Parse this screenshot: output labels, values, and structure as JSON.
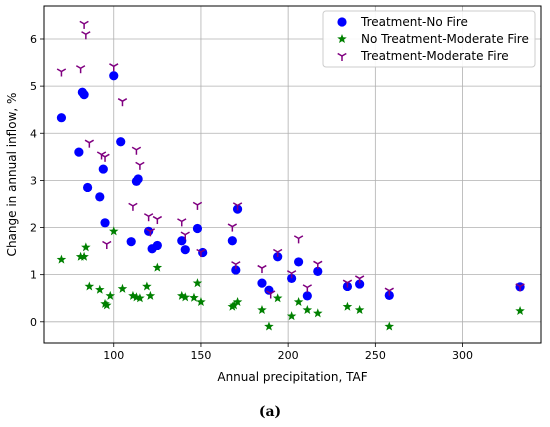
{
  "chart_data": {
    "type": "scatter",
    "xlabel": "Annual precipitation, TAF",
    "ylabel": "Change in annual inflow, %",
    "xlim": [
      60,
      345
    ],
    "ylim": [
      -0.45,
      6.7
    ],
    "xticks": [
      "100",
      "150",
      "200",
      "250",
      "300"
    ],
    "xtick_values": [
      100,
      150,
      200,
      250,
      300
    ],
    "yticks": [
      "0",
      "1",
      "2",
      "3",
      "4",
      "5",
      "6"
    ],
    "ytick_values": [
      0,
      1,
      2,
      3,
      4,
      5,
      6
    ],
    "grid": true,
    "legend_position": "top-right",
    "caption": "(a)",
    "series": [
      {
        "name": "Treatment-No Fire",
        "marker": "circle",
        "color": "#0000ff",
        "points": [
          [
            70,
            4.33
          ],
          [
            80,
            3.6
          ],
          [
            82,
            4.87
          ],
          [
            83,
            4.82
          ],
          [
            85,
            2.85
          ],
          [
            92,
            2.65
          ],
          [
            94,
            3.24
          ],
          [
            95,
            2.1
          ],
          [
            100,
            5.22
          ],
          [
            104,
            3.82
          ],
          [
            110,
            1.7
          ],
          [
            113,
            2.98
          ],
          [
            114,
            3.03
          ],
          [
            120,
            1.92
          ],
          [
            122,
            1.55
          ],
          [
            125,
            1.62
          ],
          [
            139,
            1.72
          ],
          [
            141,
            1.53
          ],
          [
            148,
            1.98
          ],
          [
            151,
            1.47
          ],
          [
            168,
            1.72
          ],
          [
            170,
            1.1
          ],
          [
            171,
            2.39
          ],
          [
            185,
            0.82
          ],
          [
            189,
            0.67
          ],
          [
            194,
            1.38
          ],
          [
            202,
            0.92
          ],
          [
            206,
            1.27
          ],
          [
            211,
            0.55
          ],
          [
            217,
            1.07
          ],
          [
            234,
            0.75
          ],
          [
            241,
            0.8
          ],
          [
            258,
            0.56
          ],
          [
            333,
            0.74
          ]
        ]
      },
      {
        "name": "No Treatment-Moderate Fire",
        "marker": "star",
        "color": "#008000",
        "points": [
          [
            70,
            1.32
          ],
          [
            81,
            1.38
          ],
          [
            83,
            1.38
          ],
          [
            84,
            1.58
          ],
          [
            86,
            0.75
          ],
          [
            92,
            0.68
          ],
          [
            95,
            0.38
          ],
          [
            96,
            0.35
          ],
          [
            98,
            0.55
          ],
          [
            100,
            1.92
          ],
          [
            105,
            0.7
          ],
          [
            111,
            0.55
          ],
          [
            113,
            0.52
          ],
          [
            115,
            0.5
          ],
          [
            119,
            0.75
          ],
          [
            121,
            0.55
          ],
          [
            125,
            1.15
          ],
          [
            139,
            0.55
          ],
          [
            141,
            0.52
          ],
          [
            146,
            0.51
          ],
          [
            148,
            0.82
          ],
          [
            150,
            0.42
          ],
          [
            168,
            0.32
          ],
          [
            169,
            0.35
          ],
          [
            171,
            0.42
          ],
          [
            185,
            0.25
          ],
          [
            189,
            -0.1
          ],
          [
            194,
            0.5
          ],
          [
            202,
            0.12
          ],
          [
            206,
            0.42
          ],
          [
            211,
            0.25
          ],
          [
            217,
            0.18
          ],
          [
            234,
            0.32
          ],
          [
            241,
            0.25
          ],
          [
            258,
            -0.1
          ],
          [
            333,
            0.23
          ]
        ]
      },
      {
        "name": "Treatment-Moderate Fire",
        "marker": "tri_down",
        "color": "#800080",
        "points": [
          [
            70,
            5.31
          ],
          [
            81,
            5.38
          ],
          [
            83,
            6.32
          ],
          [
            84,
            6.1
          ],
          [
            86,
            3.8
          ],
          [
            93,
            3.55
          ],
          [
            95,
            3.5
          ],
          [
            96,
            1.65
          ],
          [
            100,
            5.42
          ],
          [
            105,
            4.68
          ],
          [
            111,
            2.46
          ],
          [
            113,
            3.65
          ],
          [
            115,
            3.33
          ],
          [
            120,
            2.24
          ],
          [
            121,
            1.92
          ],
          [
            125,
            2.18
          ],
          [
            139,
            2.13
          ],
          [
            141,
            1.85
          ],
          [
            148,
            2.48
          ],
          [
            150,
            1.48
          ],
          [
            168,
            2.02
          ],
          [
            170,
            1.22
          ],
          [
            171,
            2.47
          ],
          [
            185,
            1.14
          ],
          [
            190,
            0.6
          ],
          [
            194,
            1.48
          ],
          [
            202,
            1.03
          ],
          [
            206,
            1.77
          ],
          [
            211,
            0.73
          ],
          [
            217,
            1.23
          ],
          [
            234,
            0.83
          ],
          [
            241,
            0.92
          ],
          [
            258,
            0.66
          ],
          [
            333,
            0.75
          ]
        ]
      }
    ]
  }
}
